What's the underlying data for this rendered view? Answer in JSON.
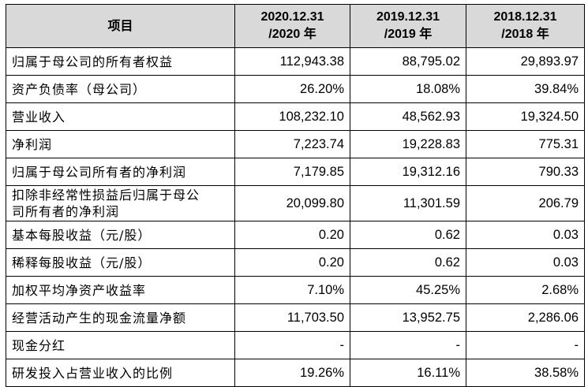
{
  "table": {
    "header": [
      "项目",
      [
        "2020.12.31",
        "/2020 年"
      ],
      [
        "2019.12.31",
        "/2019 年"
      ],
      [
        "2018.12.31",
        "/2018 年"
      ]
    ],
    "rows": [
      [
        "归属于母公司的所有者权益",
        "112,943.38",
        "88,795.02",
        "29,893.97"
      ],
      [
        "资产负债率（母公司）",
        "26.20%",
        "18.08%",
        "39.84%"
      ],
      [
        "营业收入",
        "108,232.10",
        "48,562.93",
        "19,324.50"
      ],
      [
        "净利润",
        "7,223.74",
        "19,228.83",
        "775.31"
      ],
      [
        "归属于母公司所有者的净利润",
        "7,179.85",
        "19,312.16",
        "790.33"
      ],
      [
        [
          "扣除非经常性损益后归属于母公",
          "司所有者的净利润"
        ],
        "20,099.80",
        "11,301.59",
        "206.79"
      ],
      [
        "基本每股收益（元/股）",
        "0.20",
        "0.62",
        "0.03"
      ],
      [
        "稀释每股收益（元/股）",
        "0.20",
        "0.62",
        "0.03"
      ],
      [
        "加权平均净资产收益率",
        "7.10%",
        "45.25%",
        "2.68%"
      ],
      [
        "经营活动产生的现金流量净额",
        "11,703.50",
        "13,952.75",
        "2,286.06"
      ],
      [
        "现金分红",
        "-",
        "-",
        "-"
      ],
      [
        "研发投入占营业收入的比例",
        "19.26%",
        "16.11%",
        "38.58%"
      ]
    ]
  }
}
